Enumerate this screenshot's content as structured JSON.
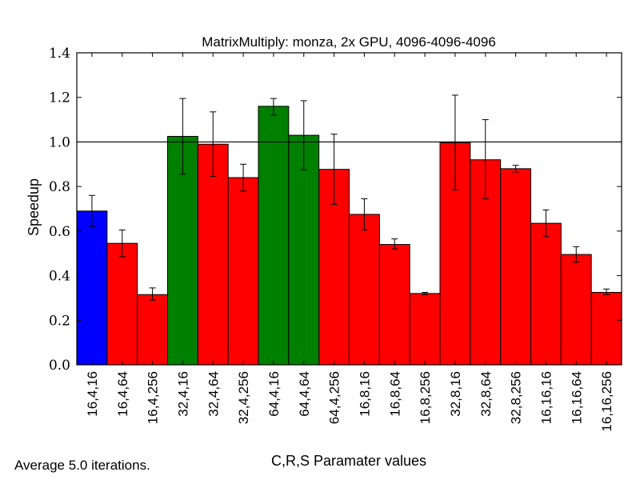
{
  "chart_data": {
    "type": "bar",
    "title": "MatrixMultiply: monza, 2x GPU, 4096-4096-4096",
    "xlabel": "C,R,S Paramater values",
    "ylabel": "Speedup",
    "footnote": "Average 5.0 iterations.",
    "ylim": [
      0.0,
      1.4
    ],
    "yticks": [
      "0.0",
      "0.2",
      "0.4",
      "0.6",
      "0.8",
      "1.0",
      "1.2",
      "1.4"
    ],
    "reference_line": 1.0,
    "grid": false,
    "categories": [
      "16,4,16",
      "16,4,64",
      "16,4,256",
      "32,4,16",
      "32,4,64",
      "32,4,256",
      "64,4,16",
      "64,4,64",
      "64,4,256",
      "16,8,16",
      "16,8,64",
      "16,8,256",
      "32,8,16",
      "32,8,64",
      "32,8,256",
      "16,16,16",
      "16,16,64",
      "16,16,256"
    ],
    "values": [
      0.69,
      0.545,
      0.315,
      1.025,
      0.99,
      0.84,
      1.16,
      1.03,
      0.877,
      0.675,
      0.54,
      0.32,
      0.997,
      0.92,
      0.88,
      0.635,
      0.495,
      0.325
    ],
    "error_low": [
      0.62,
      0.485,
      0.29,
      0.855,
      0.845,
      0.78,
      1.12,
      0.875,
      0.72,
      0.605,
      0.52,
      0.315,
      0.785,
      0.745,
      0.865,
      0.575,
      0.46,
      0.315
    ],
    "error_high": [
      0.76,
      0.605,
      0.345,
      1.195,
      1.135,
      0.9,
      1.195,
      1.185,
      1.035,
      0.745,
      0.565,
      0.325,
      1.21,
      1.1,
      0.895,
      0.695,
      0.53,
      0.34
    ],
    "colors": [
      "#0000ff",
      "#ff0000",
      "#ff0000",
      "#008000",
      "#ff0000",
      "#ff0000",
      "#008000",
      "#008000",
      "#ff0000",
      "#ff0000",
      "#ff0000",
      "#ff0000",
      "#ff0000",
      "#ff0000",
      "#ff0000",
      "#ff0000",
      "#ff0000",
      "#ff0000"
    ]
  }
}
